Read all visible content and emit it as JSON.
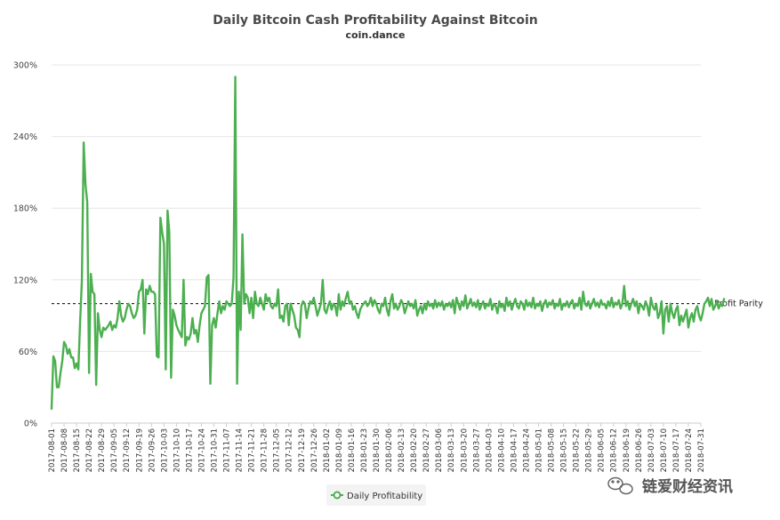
{
  "chart_data": {
    "type": "line",
    "title": "Daily Bitcoin Cash Profitability Against Bitcoin",
    "subtitle": "coin.dance",
    "xlabel": "",
    "ylabel": "",
    "ylim": [
      0,
      300
    ],
    "y_ticks": [
      0,
      60,
      120,
      180,
      240,
      300
    ],
    "y_tick_labels": [
      "0%",
      "60%",
      "120%",
      "180%",
      "240%",
      "300%"
    ],
    "x_tick_labels": [
      "2017-08-01",
      "2017-08-08",
      "2017-08-15",
      "2017-08-22",
      "2017-08-29",
      "2017-09-05",
      "2017-09-12",
      "2017-09-19",
      "2017-09-26",
      "2017-10-03",
      "2017-10-10",
      "2017-10-17",
      "2017-10-24",
      "2017-10-31",
      "2017-11-07",
      "2017-11-14",
      "2017-11-21",
      "2017-11-28",
      "2017-12-05",
      "2017-12-12",
      "2017-12-19",
      "2017-12-26",
      "2018-01-02",
      "2018-01-09",
      "2018-01-16",
      "2018-01-23",
      "2018-01-30",
      "2018-02-06",
      "2018-02-13",
      "2018-02-20",
      "2018-02-27",
      "2018-03-06",
      "2018-03-13",
      "2018-03-20",
      "2018-03-27",
      "2018-04-03",
      "2018-04-10",
      "2018-04-17",
      "2018-04-24",
      "2018-05-01",
      "2018-05-08",
      "2018-05-15",
      "2018-05-22",
      "2018-05-29",
      "2018-06-05",
      "2018-06-12",
      "2018-06-19",
      "2018-06-26",
      "2018-07-03",
      "2018-07-10",
      "2018-07-17",
      "2018-07-24",
      "2018-07-31"
    ],
    "grid": true,
    "legend_position": "bottom-center",
    "reference_line": {
      "value": 100,
      "label": "Profit Parity",
      "style": "dashed"
    },
    "series": [
      {
        "name": "Daily Profitability",
        "color": "#4caf50",
        "start_date": "2017-08-01",
        "values": [
          12,
          56,
          52,
          30,
          30,
          42,
          52,
          68,
          65,
          58,
          62,
          55,
          55,
          46,
          50,
          45,
          85,
          120,
          235,
          200,
          185,
          42,
          125,
          110,
          108,
          32,
          92,
          78,
          72,
          80,
          78,
          80,
          82,
          85,
          78,
          82,
          80,
          88,
          102,
          90,
          85,
          88,
          95,
          100,
          98,
          92,
          88,
          90,
          95,
          110,
          112,
          120,
          75,
          112,
          108,
          115,
          110,
          110,
          108,
          56,
          55,
          172,
          160,
          150,
          45,
          178,
          160,
          38,
          95,
          90,
          82,
          78,
          75,
          72,
          120,
          65,
          72,
          70,
          75,
          88,
          75,
          78,
          68,
          82,
          92,
          95,
          98,
          122,
          124,
          33,
          82,
          88,
          80,
          92,
          102,
          92,
          98,
          95,
          102,
          100,
          98,
          100,
          122,
          290,
          33,
          110,
          78,
          158,
          100,
          108,
          105,
          92,
          105,
          88,
          110,
          100,
          98,
          105,
          100,
          95,
          108,
          102,
          105,
          98,
          96,
          100,
          98,
          112,
          88,
          90,
          85,
          98,
          100,
          82,
          100,
          95,
          90,
          80,
          78,
          72,
          98,
          102,
          100,
          88,
          96,
          102,
          100,
          105,
          98,
          90,
          95,
          100,
          120,
          95,
          92,
          98,
          102,
          95,
          100,
          98,
          90,
          108,
          95,
          102,
          98,
          105,
          110,
          100,
          102,
          95,
          98,
          92,
          88,
          95,
          98,
          100,
          102,
          98,
          100,
          105,
          98,
          103,
          100,
          95,
          92,
          100,
          98,
          105,
          95,
          90,
          102,
          108,
          96,
          100,
          95,
          98,
          103,
          100,
          92,
          97,
          102,
          98,
          100,
          96,
          103,
          90,
          95,
          98,
          92,
          100,
          95,
          102,
          98,
          100,
          96,
          103,
          97,
          101,
          98,
          102,
          95,
          100,
          98,
          101,
          97,
          103,
          92,
          105,
          100,
          95,
          102,
          98,
          107,
          96,
          100,
          104,
          98,
          101,
          97,
          103,
          95,
          99,
          102,
          96,
          100,
          98,
          104,
          95,
          100,
          98,
          92,
          102,
          97,
          100,
          94,
          105,
          98,
          102,
          95,
          100,
          104,
          98,
          96,
          102,
          100,
          95,
          103,
          98,
          101,
          97,
          105,
          96,
          100,
          98,
          102,
          94,
          100,
          103,
          97,
          101,
          99,
          103,
          96,
          100,
          98,
          104,
          95,
          100,
          98,
          102,
          97,
          101,
          103,
          96,
          100,
          98,
          105,
          95,
          110,
          100,
          98,
          102,
          96,
          100,
          104,
          98,
          101,
          97,
          103,
          99,
          100,
          96,
          102,
          98,
          105,
          97,
          101,
          99,
          103,
          96,
          100,
          115,
          98,
          102,
          95,
          100,
          104,
          98,
          102,
          92,
          100,
          98,
          95,
          102,
          98,
          90,
          105,
          98,
          95,
          100,
          88,
          92,
          102,
          75,
          95,
          98,
          85,
          100,
          92,
          88,
          95,
          98,
          82,
          90,
          85,
          90,
          95,
          80,
          88,
          92,
          85,
          95,
          98,
          90,
          86,
          92,
          100,
          102,
          105,
          98,
          104,
          95,
          98,
          102,
          96,
          100,
          98,
          104
        ]
      }
    ]
  },
  "legend": {
    "label": "Daily Profitability"
  },
  "watermark": {
    "text": "链爱财经资讯"
  }
}
